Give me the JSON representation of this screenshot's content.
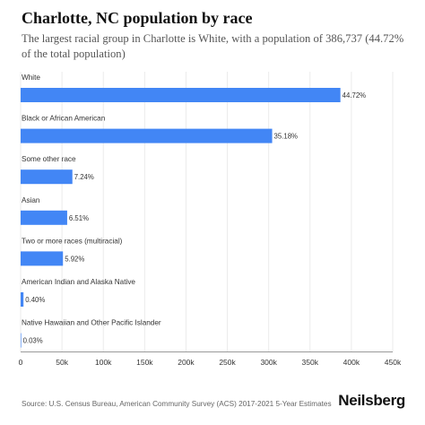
{
  "title": "Charlotte, NC population by race",
  "subtitle": "The largest racial group in Charlotte is White, with a population of 386,737 (44.72% of the total population)",
  "source": "Source: U.S. Census Bureau, American Community Survey (ACS) 2017-2021 5-Year Estimates",
  "brand": "Neilsberg",
  "colors": {
    "bar": "#4286f5",
    "grid": "#ebebeb",
    "axis": "#999999",
    "text": "#333333"
  },
  "chart_data": {
    "type": "bar",
    "orientation": "horizontal",
    "categories": [
      "White",
      "Black or African American",
      "Some other race",
      "Asian",
      "Two or more races (multiracial)",
      "American Indian and Alaska Native",
      "Native Hawaiian and Other Pacific Islander"
    ],
    "values": [
      386737,
      304200,
      62600,
      56300,
      51200,
      3460,
      260
    ],
    "data_labels": [
      "44.72%",
      "35.18%",
      "7.24%",
      "6.51%",
      "5.92%",
      "0.40%",
      "0.03%"
    ],
    "x_ticks": [
      0,
      50000,
      100000,
      150000,
      200000,
      250000,
      300000,
      350000,
      400000,
      450000
    ],
    "x_tick_labels": [
      "0",
      "50k",
      "100k",
      "150k",
      "200k",
      "250k",
      "300k",
      "350k",
      "400k",
      "450k"
    ],
    "xlim": [
      0,
      450000
    ],
    "grid": true,
    "legend": "none"
  }
}
